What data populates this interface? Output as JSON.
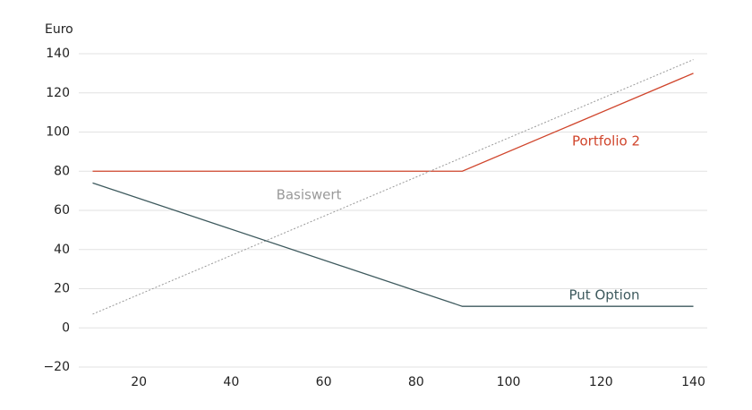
{
  "chart_data": {
    "type": "line",
    "y_label": "Euro",
    "x": [
      10,
      90,
      140
    ],
    "series": [
      {
        "name": "Portfolio 2",
        "color": "#d0452c",
        "values": [
          80,
          80,
          130
        ],
        "dash": "solid"
      },
      {
        "name": "Basiswert",
        "color": "#999999",
        "values": [
          7,
          87,
          137
        ],
        "dash": "dotted"
      },
      {
        "name": "Put Option",
        "color": "#3e5a5e",
        "values": [
          74,
          11,
          11
        ],
        "dash": "solid"
      }
    ],
    "xlim": [
      7,
      143
    ],
    "xticks": [
      20,
      40,
      60,
      80,
      100,
      120,
      140
    ],
    "ylim": [
      -20,
      140
    ],
    "yticks": [
      {
        "value": -20,
        "label": "−20"
      },
      0,
      20,
      40,
      60,
      80,
      100,
      120,
      140
    ],
    "grid": true
  }
}
